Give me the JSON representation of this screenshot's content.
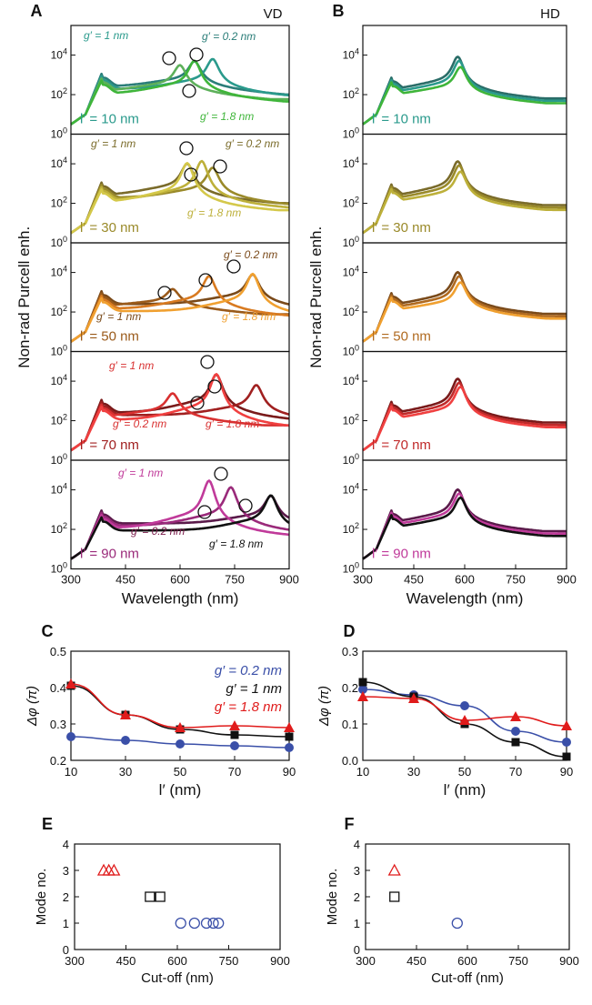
{
  "figure": {
    "panel_labels": [
      "A",
      "B",
      "C",
      "D",
      "E",
      "F"
    ],
    "purcell": {
      "x_label": "Wavelength (nm)",
      "y_label": "Non-rad Purcell enh.",
      "x_ticks": [
        "300",
        "450",
        "600",
        "750",
        "900"
      ],
      "y_ticks": [
        "10^0",
        "10^2",
        "10^4"
      ],
      "A_tag": "VD",
      "B_tag": "HD"
    },
    "phase": {
      "y_label": "Δφ (π)",
      "x_label": "l′ (nm)",
      "legend": [
        "g′ = 0.2 nm",
        "g′ = 1 nm",
        "g′ = 1.8 nm"
      ],
      "legend_colors": [
        "#3a4fa8",
        "#111111",
        "#e01b1b"
      ]
    },
    "mode": {
      "y_label": "Mode no.",
      "x_label": "Cut-off (nm)"
    }
  },
  "chart_data": [
    {
      "panel": "A",
      "type": "line",
      "title": "VD",
      "xlabel": "Wavelength (nm)",
      "ylabel": "Non-rad Purcell enh.",
      "xlim": [
        300,
        900
      ],
      "ylim_log10": [
        0,
        5.5
      ],
      "yscale": "log",
      "subpanels": [
        {
          "label": "l′ = 10 nm",
          "colors": [
            "#2a7d78",
            "#2a9a8c",
            "#5db05a",
            "#3fb53a"
          ],
          "series_labels": [
            "g′ = 1 nm",
            "g′ = 0.2 nm",
            "g′ = 1.8 nm"
          ],
          "peaks_nm": [
            640,
            690,
            600
          ],
          "peak_log10": [
            3.6,
            3.7,
            3.4
          ],
          "baseline_log10": 2.4
        },
        {
          "label": "l′ = 30 nm",
          "colors": [
            "#7a6b2a",
            "#9a8a2a",
            "#bdb03a",
            "#d4c84a"
          ],
          "series_labels": [
            "g′ = 1 nm",
            "g′ = 0.2 nm",
            "g′ = 1.8 nm"
          ],
          "peaks_nm": [
            620,
            690,
            660
          ],
          "peak_log10": [
            3.9,
            3.7,
            4.0
          ],
          "baseline_log10": 2.4
        },
        {
          "label": "l′ = 50 nm",
          "colors": [
            "#7a4a1a",
            "#9a5a1a",
            "#d87a20",
            "#f0a030"
          ],
          "series_labels": [
            "g′ = 0.2 nm",
            "g′ = 1 nm",
            "g′ = 1.8 nm"
          ],
          "peaks_nm": [
            800,
            580,
            680
          ],
          "peak_log10": [
            3.8,
            3.1,
            3.7
          ],
          "baseline_log10": 2.4
        },
        {
          "label": "l′ = 70 nm",
          "colors": [
            "#7a1a1a",
            "#a02020",
            "#d83030",
            "#f04040"
          ],
          "series_labels": [
            "g′ = 1 nm",
            "g′ = 0.2 nm",
            "g′ = 1.8 nm"
          ],
          "peaks_nm": [
            700,
            810,
            580
          ],
          "peak_log10": [
            4.2,
            3.7,
            3.3
          ],
          "baseline_log10": 2.4
        },
        {
          "label": "l′ = 90 nm",
          "colors": [
            "#5a1a4a",
            "#9a2a7a",
            "#c03a9a",
            "#111111"
          ],
          "series_labels": [
            "g′ = 1 nm",
            "g′ = 0.2 nm",
            "g′ = 1.8 nm"
          ],
          "peaks_nm": [
            850,
            740,
            680
          ],
          "peak_log10": [
            3.6,
            4.0,
            4.3
          ],
          "baseline_log10": 2.3
        }
      ]
    },
    {
      "panel": "B",
      "type": "line",
      "title": "HD",
      "xlabel": "Wavelength (nm)",
      "ylabel": "Non-rad Purcell enh.",
      "xlim": [
        300,
        900
      ],
      "ylim_log10": [
        0,
        5.5
      ],
      "yscale": "log",
      "subpanels": [
        {
          "label": "l′ = 10 nm",
          "colors": [
            "#2a6d68",
            "#2a9a8c",
            "#3fb53a"
          ],
          "peak_nm": 580,
          "peak_log10": [
            3.8,
            3.6,
            3.3
          ],
          "baseline_log10": 2.2
        },
        {
          "label": "l′ = 30 nm",
          "colors": [
            "#7a6b2a",
            "#9a8a2a",
            "#bdb03a"
          ],
          "peak_nm": 580,
          "peak_log10": [
            4.0,
            3.8,
            3.5
          ],
          "baseline_log10": 2.3
        },
        {
          "label": "l′ = 50 nm",
          "colors": [
            "#7a4a1a",
            "#b06a20",
            "#f0a030"
          ],
          "peak_nm": 580,
          "peak_log10": [
            3.9,
            3.7,
            3.4
          ],
          "baseline_log10": 2.3
        },
        {
          "label": "l′ = 70 nm",
          "colors": [
            "#7a1a1a",
            "#c02a2a",
            "#f04040"
          ],
          "peak_nm": 580,
          "peak_log10": [
            4.0,
            3.8,
            3.6
          ],
          "baseline_log10": 2.3
        },
        {
          "label": "l′ = 90 nm",
          "colors": [
            "#5a1a4a",
            "#c03a9a",
            "#111111"
          ],
          "peak_nm": 580,
          "peak_log10": [
            3.9,
            3.7,
            3.5
          ],
          "baseline_log10": 2.3
        }
      ]
    },
    {
      "panel": "C",
      "type": "line",
      "xlabel": "l′ (nm)",
      "ylabel": "Δφ (π)",
      "xlim": [
        10,
        90
      ],
      "ylim": [
        0.2,
        0.5
      ],
      "x_ticks": [
        10,
        30,
        50,
        70,
        90
      ],
      "y_ticks": [
        0.2,
        0.3,
        0.4,
        0.5
      ],
      "x": [
        10,
        30,
        50,
        70,
        90
      ],
      "series": [
        {
          "name": "g′ = 0.2 nm",
          "marker": "circle",
          "color": "#3a4fa8",
          "values": [
            0.265,
            0.255,
            0.245,
            0.24,
            0.235
          ]
        },
        {
          "name": "g′ = 1 nm",
          "marker": "square",
          "color": "#111111",
          "values": [
            0.405,
            0.325,
            0.285,
            0.27,
            0.265
          ]
        },
        {
          "name": "g′ = 1.8 nm",
          "marker": "triangle",
          "color": "#e01b1b",
          "values": [
            0.41,
            0.325,
            0.29,
            0.295,
            0.29
          ]
        }
      ]
    },
    {
      "panel": "D",
      "type": "line",
      "xlabel": "l′ (nm)",
      "ylabel": "Δφ (π)",
      "xlim": [
        10,
        90
      ],
      "ylim": [
        0.0,
        0.3
      ],
      "x_ticks": [
        10,
        30,
        50,
        70,
        90
      ],
      "y_ticks": [
        0.0,
        0.1,
        0.2,
        0.3
      ],
      "x": [
        10,
        30,
        50,
        70,
        90
      ],
      "series": [
        {
          "name": "g′ = 0.2 nm",
          "marker": "circle",
          "color": "#3a4fa8",
          "values": [
            0.195,
            0.18,
            0.15,
            0.08,
            0.05
          ]
        },
        {
          "name": "g′ = 1 nm",
          "marker": "square",
          "color": "#111111",
          "values": [
            0.215,
            0.175,
            0.1,
            0.05,
            0.01
          ]
        },
        {
          "name": "g′ = 1.8 nm",
          "marker": "triangle",
          "color": "#e01b1b",
          "values": [
            0.175,
            0.17,
            0.11,
            0.12,
            0.095
          ]
        }
      ]
    },
    {
      "panel": "E",
      "type": "scatter",
      "xlabel": "Cut-off (nm)",
      "ylabel": "Mode no.",
      "xlim": [
        300,
        900
      ],
      "ylim": [
        0,
        4
      ],
      "x_ticks": [
        300,
        450,
        600,
        750,
        900
      ],
      "y_ticks": [
        0,
        1,
        2,
        3,
        4
      ],
      "series": [
        {
          "marker": "triangle",
          "color": "#e01b1b",
          "mode": 3,
          "x": [
            385,
            400,
            415
          ]
        },
        {
          "marker": "square",
          "color": "#111111",
          "mode": 2,
          "x": [
            520,
            550
          ]
        },
        {
          "marker": "circle",
          "color": "#3a4fa8",
          "mode": 1,
          "x": [
            610,
            650,
            685,
            705,
            720
          ]
        }
      ]
    },
    {
      "panel": "F",
      "type": "scatter",
      "xlabel": "Cut-off (nm)",
      "ylabel": "Mode no.",
      "xlim": [
        300,
        900
      ],
      "ylim": [
        0,
        4
      ],
      "x_ticks": [
        300,
        450,
        600,
        750,
        900
      ],
      "y_ticks": [
        0,
        1,
        2,
        3,
        4
      ],
      "series": [
        {
          "marker": "triangle",
          "color": "#e01b1b",
          "mode": 3,
          "x": [
            385
          ]
        },
        {
          "marker": "square",
          "color": "#111111",
          "mode": 2,
          "x": [
            385
          ]
        },
        {
          "marker": "circle",
          "color": "#3a4fa8",
          "mode": 1,
          "x": [
            570
          ]
        }
      ]
    }
  ]
}
